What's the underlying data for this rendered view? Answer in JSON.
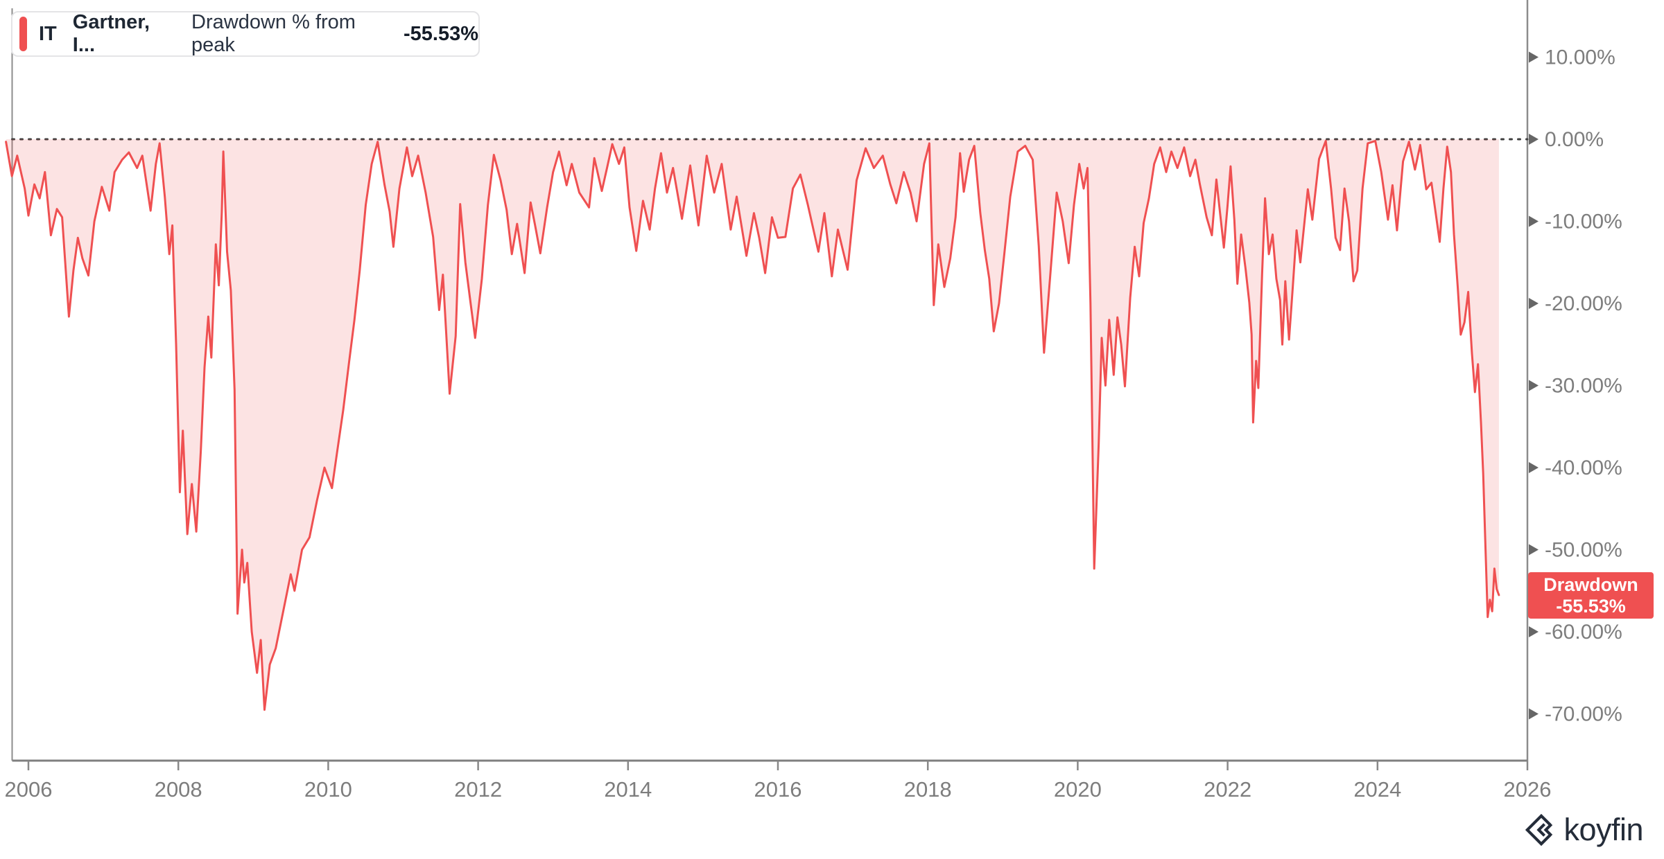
{
  "legend": {
    "ticker": "IT",
    "security_name": "Gartner, I...",
    "metric_label": "Drawdown % from peak",
    "value": "-55.53%"
  },
  "badge": {
    "line1": "Drawdown",
    "line2": "-55.53%"
  },
  "watermark": {
    "text": "koyfin"
  },
  "colors": {
    "accent_red": "#EF5051",
    "area_fill": "rgba(239,80,81,0.16)",
    "axis_line": "#8c8c8c",
    "tick_text": "#7d7d7d",
    "arrow": "#666666",
    "zero_dotted": "#3f3f3f"
  },
  "chart_data": {
    "type": "area",
    "title": "IT Gartner, Inc. — Drawdown % from peak",
    "xlabel": "",
    "ylabel": "Drawdown % from peak",
    "legend_position": "top-left",
    "grid": false,
    "zero_line": 0,
    "xlim": [
      2005.62,
      2026.0
    ],
    "ylim": [
      -75,
      13
    ],
    "x_ticks": [
      2006,
      2008,
      2010,
      2012,
      2014,
      2016,
      2018,
      2020,
      2022,
      2024,
      2026
    ],
    "y_ticks": [
      {
        "label": "10.00%",
        "value": 10
      },
      {
        "label": "0.00%",
        "value": 0
      },
      {
        "label": "-10.00%",
        "value": -10
      },
      {
        "label": "-20.00%",
        "value": -20
      },
      {
        "label": "-30.00%",
        "value": -30
      },
      {
        "label": "-40.00%",
        "value": -40
      },
      {
        "label": "-50.00%",
        "value": -50
      },
      {
        "label": "-60.00%",
        "value": -60
      },
      {
        "label": "-70.00%",
        "value": -70
      }
    ],
    "last_value": -55.53,
    "series": [
      {
        "name": "IT — Drawdown % from peak",
        "points": [
          [
            2005.7,
            -0.3
          ],
          [
            2005.78,
            -4.5
          ],
          [
            2005.85,
            -2.0
          ],
          [
            2005.95,
            -6.0
          ],
          [
            2006.0,
            -9.3
          ],
          [
            2006.08,
            -5.5
          ],
          [
            2006.15,
            -7.2
          ],
          [
            2006.22,
            -4.0
          ],
          [
            2006.3,
            -11.7
          ],
          [
            2006.38,
            -8.5
          ],
          [
            2006.45,
            -9.5
          ],
          [
            2006.54,
            -21.6
          ],
          [
            2006.6,
            -16.0
          ],
          [
            2006.66,
            -12.0
          ],
          [
            2006.72,
            -14.5
          ],
          [
            2006.8,
            -16.6
          ],
          [
            2006.88,
            -10.0
          ],
          [
            2006.98,
            -5.8
          ],
          [
            2007.08,
            -8.7
          ],
          [
            2007.15,
            -4.0
          ],
          [
            2007.25,
            -2.5
          ],
          [
            2007.34,
            -1.6
          ],
          [
            2007.45,
            -3.5
          ],
          [
            2007.52,
            -2.0
          ],
          [
            2007.63,
            -8.7
          ],
          [
            2007.7,
            -3.0
          ],
          [
            2007.75,
            -0.5
          ],
          [
            2007.82,
            -7.0
          ],
          [
            2007.88,
            -14.0
          ],
          [
            2007.92,
            -10.5
          ],
          [
            2007.97,
            -25.0
          ],
          [
            2008.02,
            -43.0
          ],
          [
            2008.06,
            -35.5
          ],
          [
            2008.12,
            -48.1
          ],
          [
            2008.18,
            -42.0
          ],
          [
            2008.24,
            -47.8
          ],
          [
            2008.3,
            -38.0
          ],
          [
            2008.35,
            -27.8
          ],
          [
            2008.4,
            -21.6
          ],
          [
            2008.44,
            -26.6
          ],
          [
            2008.5,
            -12.8
          ],
          [
            2008.54,
            -17.8
          ],
          [
            2008.58,
            -8.9
          ],
          [
            2008.6,
            -1.5
          ],
          [
            2008.65,
            -13.7
          ],
          [
            2008.7,
            -18.4
          ],
          [
            2008.75,
            -30.5
          ],
          [
            2008.79,
            -57.8
          ],
          [
            2008.85,
            -50.0
          ],
          [
            2008.88,
            -54.0
          ],
          [
            2008.92,
            -51.6
          ],
          [
            2008.98,
            -60.0
          ],
          [
            2009.05,
            -65.0
          ],
          [
            2009.1,
            -61.0
          ],
          [
            2009.15,
            -69.5
          ],
          [
            2009.22,
            -64.0
          ],
          [
            2009.3,
            -62.0
          ],
          [
            2009.4,
            -57.5
          ],
          [
            2009.5,
            -53.0
          ],
          [
            2009.55,
            -55.0
          ],
          [
            2009.65,
            -50.0
          ],
          [
            2009.75,
            -48.5
          ],
          [
            2009.85,
            -44.0
          ],
          [
            2009.95,
            -40.0
          ],
          [
            2010.05,
            -42.5
          ],
          [
            2010.12,
            -38.0
          ],
          [
            2010.2,
            -33.0
          ],
          [
            2010.28,
            -27.0
          ],
          [
            2010.35,
            -22.0
          ],
          [
            2010.42,
            -16.0
          ],
          [
            2010.5,
            -8.0
          ],
          [
            2010.58,
            -3.0
          ],
          [
            2010.66,
            -0.3
          ],
          [
            2010.75,
            -5.5
          ],
          [
            2010.82,
            -8.8
          ],
          [
            2010.87,
            -13.1
          ],
          [
            2010.95,
            -6.0
          ],
          [
            2011.05,
            -1.0
          ],
          [
            2011.12,
            -4.5
          ],
          [
            2011.2,
            -2.0
          ],
          [
            2011.3,
            -6.5
          ],
          [
            2011.4,
            -11.9
          ],
          [
            2011.48,
            -20.8
          ],
          [
            2011.53,
            -16.5
          ],
          [
            2011.62,
            -31.0
          ],
          [
            2011.7,
            -24.0
          ],
          [
            2011.76,
            -7.9
          ],
          [
            2011.83,
            -15.0
          ],
          [
            2011.9,
            -20.0
          ],
          [
            2011.96,
            -24.2
          ],
          [
            2012.05,
            -17.0
          ],
          [
            2012.13,
            -8.0
          ],
          [
            2012.21,
            -1.9
          ],
          [
            2012.3,
            -5.0
          ],
          [
            2012.38,
            -8.6
          ],
          [
            2012.45,
            -14.0
          ],
          [
            2012.52,
            -10.3
          ],
          [
            2012.62,
            -16.3
          ],
          [
            2012.7,
            -7.7
          ],
          [
            2012.76,
            -10.5
          ],
          [
            2012.83,
            -13.9
          ],
          [
            2012.92,
            -8.3
          ],
          [
            2013.0,
            -4.0
          ],
          [
            2013.08,
            -1.5
          ],
          [
            2013.18,
            -5.6
          ],
          [
            2013.25,
            -3.0
          ],
          [
            2013.35,
            -6.5
          ],
          [
            2013.48,
            -8.3
          ],
          [
            2013.55,
            -2.3
          ],
          [
            2013.65,
            -6.3
          ],
          [
            2013.72,
            -3.5
          ],
          [
            2013.79,
            -0.6
          ],
          [
            2013.88,
            -3.0
          ],
          [
            2013.95,
            -1.0
          ],
          [
            2014.02,
            -8.3
          ],
          [
            2014.11,
            -13.6
          ],
          [
            2014.2,
            -7.5
          ],
          [
            2014.29,
            -11.0
          ],
          [
            2014.36,
            -6.0
          ],
          [
            2014.44,
            -1.7
          ],
          [
            2014.52,
            -6.5
          ],
          [
            2014.6,
            -3.5
          ],
          [
            2014.72,
            -9.7
          ],
          [
            2014.83,
            -3.2
          ],
          [
            2014.94,
            -10.5
          ],
          [
            2015.05,
            -2.0
          ],
          [
            2015.15,
            -6.5
          ],
          [
            2015.25,
            -3.0
          ],
          [
            2015.37,
            -11.0
          ],
          [
            2015.45,
            -7.0
          ],
          [
            2015.58,
            -14.2
          ],
          [
            2015.68,
            -9.0
          ],
          [
            2015.75,
            -12.0
          ],
          [
            2015.83,
            -16.3
          ],
          [
            2015.92,
            -9.5
          ],
          [
            2016.0,
            -12.0
          ],
          [
            2016.1,
            -11.9
          ],
          [
            2016.2,
            -6.0
          ],
          [
            2016.3,
            -4.3
          ],
          [
            2016.4,
            -8.0
          ],
          [
            2016.54,
            -13.7
          ],
          [
            2016.62,
            -9.0
          ],
          [
            2016.72,
            -16.7
          ],
          [
            2016.8,
            -11.0
          ],
          [
            2016.93,
            -15.9
          ],
          [
            2017.05,
            -5.0
          ],
          [
            2017.17,
            -1.1
          ],
          [
            2017.28,
            -3.5
          ],
          [
            2017.4,
            -2.0
          ],
          [
            2017.5,
            -5.5
          ],
          [
            2017.58,
            -7.8
          ],
          [
            2017.68,
            -4.0
          ],
          [
            2017.77,
            -6.5
          ],
          [
            2017.85,
            -10.0
          ],
          [
            2017.95,
            -3.0
          ],
          [
            2018.02,
            -0.5
          ],
          [
            2018.08,
            -20.2
          ],
          [
            2018.14,
            -12.8
          ],
          [
            2018.22,
            -18.0
          ],
          [
            2018.3,
            -14.5
          ],
          [
            2018.37,
            -9.5
          ],
          [
            2018.43,
            -1.7
          ],
          [
            2018.48,
            -6.4
          ],
          [
            2018.55,
            -2.5
          ],
          [
            2018.62,
            -0.8
          ],
          [
            2018.7,
            -9.0
          ],
          [
            2018.76,
            -13.5
          ],
          [
            2018.82,
            -17.0
          ],
          [
            2018.88,
            -23.4
          ],
          [
            2018.95,
            -20.0
          ],
          [
            2019.02,
            -14.0
          ],
          [
            2019.1,
            -7.0
          ],
          [
            2019.2,
            -1.5
          ],
          [
            2019.3,
            -0.8
          ],
          [
            2019.4,
            -2.5
          ],
          [
            2019.48,
            -13.0
          ],
          [
            2019.55,
            -26.0
          ],
          [
            2019.63,
            -17.0
          ],
          [
            2019.72,
            -6.5
          ],
          [
            2019.8,
            -10.0
          ],
          [
            2019.88,
            -15.1
          ],
          [
            2019.95,
            -8.0
          ],
          [
            2020.02,
            -3.0
          ],
          [
            2020.08,
            -6.0
          ],
          [
            2020.13,
            -3.5
          ],
          [
            2020.17,
            -20.0
          ],
          [
            2020.22,
            -52.3
          ],
          [
            2020.28,
            -37.0
          ],
          [
            2020.32,
            -24.2
          ],
          [
            2020.37,
            -30.0
          ],
          [
            2020.42,
            -22.0
          ],
          [
            2020.48,
            -28.7
          ],
          [
            2020.53,
            -21.7
          ],
          [
            2020.58,
            -25.0
          ],
          [
            2020.63,
            -30.1
          ],
          [
            2020.7,
            -19.3
          ],
          [
            2020.76,
            -13.1
          ],
          [
            2020.82,
            -16.7
          ],
          [
            2020.88,
            -10.2
          ],
          [
            2020.95,
            -7.2
          ],
          [
            2021.02,
            -3.0
          ],
          [
            2021.1,
            -1.0
          ],
          [
            2021.18,
            -4.0
          ],
          [
            2021.25,
            -1.5
          ],
          [
            2021.33,
            -3.5
          ],
          [
            2021.42,
            -1.0
          ],
          [
            2021.5,
            -4.5
          ],
          [
            2021.57,
            -2.5
          ],
          [
            2021.63,
            -5.5
          ],
          [
            2021.72,
            -9.5
          ],
          [
            2021.79,
            -11.7
          ],
          [
            2021.85,
            -4.9
          ],
          [
            2021.95,
            -13.2
          ],
          [
            2022.0,
            -8.0
          ],
          [
            2022.04,
            -3.3
          ],
          [
            2022.09,
            -9.8
          ],
          [
            2022.13,
            -17.6
          ],
          [
            2022.18,
            -11.6
          ],
          [
            2022.24,
            -15.8
          ],
          [
            2022.29,
            -19.9
          ],
          [
            2022.32,
            -23.8
          ],
          [
            2022.34,
            -34.5
          ],
          [
            2022.38,
            -27.0
          ],
          [
            2022.41,
            -30.3
          ],
          [
            2022.46,
            -16.5
          ],
          [
            2022.5,
            -7.2
          ],
          [
            2022.55,
            -14.0
          ],
          [
            2022.6,
            -11.6
          ],
          [
            2022.65,
            -17.0
          ],
          [
            2022.7,
            -19.6
          ],
          [
            2022.73,
            -25.0
          ],
          [
            2022.77,
            -17.3
          ],
          [
            2022.82,
            -24.4
          ],
          [
            2022.87,
            -18.0
          ],
          [
            2022.92,
            -11.1
          ],
          [
            2022.97,
            -15.0
          ],
          [
            2023.07,
            -6.1
          ],
          [
            2023.13,
            -9.8
          ],
          [
            2023.22,
            -2.4
          ],
          [
            2023.31,
            -0.2
          ],
          [
            2023.38,
            -6.0
          ],
          [
            2023.44,
            -12.0
          ],
          [
            2023.5,
            -13.5
          ],
          [
            2023.56,
            -6.0
          ],
          [
            2023.62,
            -10.0
          ],
          [
            2023.68,
            -17.3
          ],
          [
            2023.73,
            -16.0
          ],
          [
            2023.8,
            -6.0
          ],
          [
            2023.87,
            -0.5
          ],
          [
            2023.97,
            -0.2
          ],
          [
            2024.05,
            -4.0
          ],
          [
            2024.14,
            -9.8
          ],
          [
            2024.2,
            -5.6
          ],
          [
            2024.26,
            -11.1
          ],
          [
            2024.34,
            -2.7
          ],
          [
            2024.42,
            -0.3
          ],
          [
            2024.5,
            -3.7
          ],
          [
            2024.57,
            -0.7
          ],
          [
            2024.65,
            -6.1
          ],
          [
            2024.72,
            -5.3
          ],
          [
            2024.83,
            -12.5
          ],
          [
            2024.88,
            -6.0
          ],
          [
            2024.93,
            -0.9
          ],
          [
            2024.98,
            -4.0
          ],
          [
            2025.02,
            -11.6
          ],
          [
            2025.07,
            -18.0
          ],
          [
            2025.11,
            -23.8
          ],
          [
            2025.16,
            -22.3
          ],
          [
            2025.21,
            -18.6
          ],
          [
            2025.26,
            -26.1
          ],
          [
            2025.3,
            -30.8
          ],
          [
            2025.34,
            -27.4
          ],
          [
            2025.38,
            -34.5
          ],
          [
            2025.41,
            -40.7
          ],
          [
            2025.44,
            -49.7
          ],
          [
            2025.47,
            -58.2
          ],
          [
            2025.5,
            -56.1
          ],
          [
            2025.53,
            -57.5
          ],
          [
            2025.56,
            -52.3
          ],
          [
            2025.59,
            -54.8
          ],
          [
            2025.62,
            -55.53
          ]
        ]
      }
    ]
  }
}
